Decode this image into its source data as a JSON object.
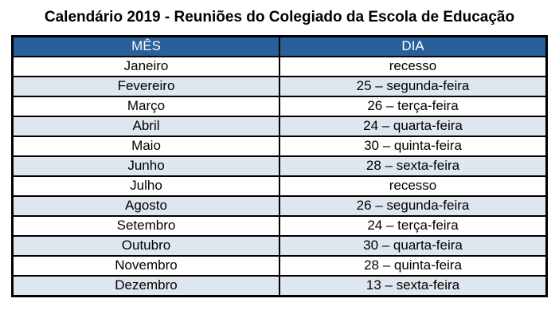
{
  "title": "Calendário 2019 - Reuniões do Colegiado da Escola de Educação",
  "table": {
    "columns": [
      "MÊS",
      "DIA"
    ],
    "rows": [
      {
        "month": "Janeiro",
        "day": "recesso"
      },
      {
        "month": "Fevereiro",
        "day": "25 – segunda-feira"
      },
      {
        "month": "Março",
        "day": "26 – terça-feira"
      },
      {
        "month": "Abril",
        "day": "24 – quarta-feira"
      },
      {
        "month": "Maio",
        "day": "30 – quinta-feira"
      },
      {
        "month": "Junho",
        "day": "28 – sexta-feira"
      },
      {
        "month": "Julho",
        "day": "recesso"
      },
      {
        "month": "Agosto",
        "day": "26 – segunda-feira"
      },
      {
        "month": "Setembro",
        "day": "24 – terça-feira"
      },
      {
        "month": "Outubro",
        "day": "30 – quarta-feira"
      },
      {
        "month": "Novembro",
        "day": "28 – quinta-feira"
      },
      {
        "month": "Dezembro",
        "day": "13 – sexta-feira"
      }
    ],
    "colors": {
      "header_bg": "#2A6099",
      "header_text": "#FFFFFF",
      "alt_row_bg": "#DEE6EF",
      "row_bg": "#FFFFFF",
      "border": "#000000"
    }
  }
}
